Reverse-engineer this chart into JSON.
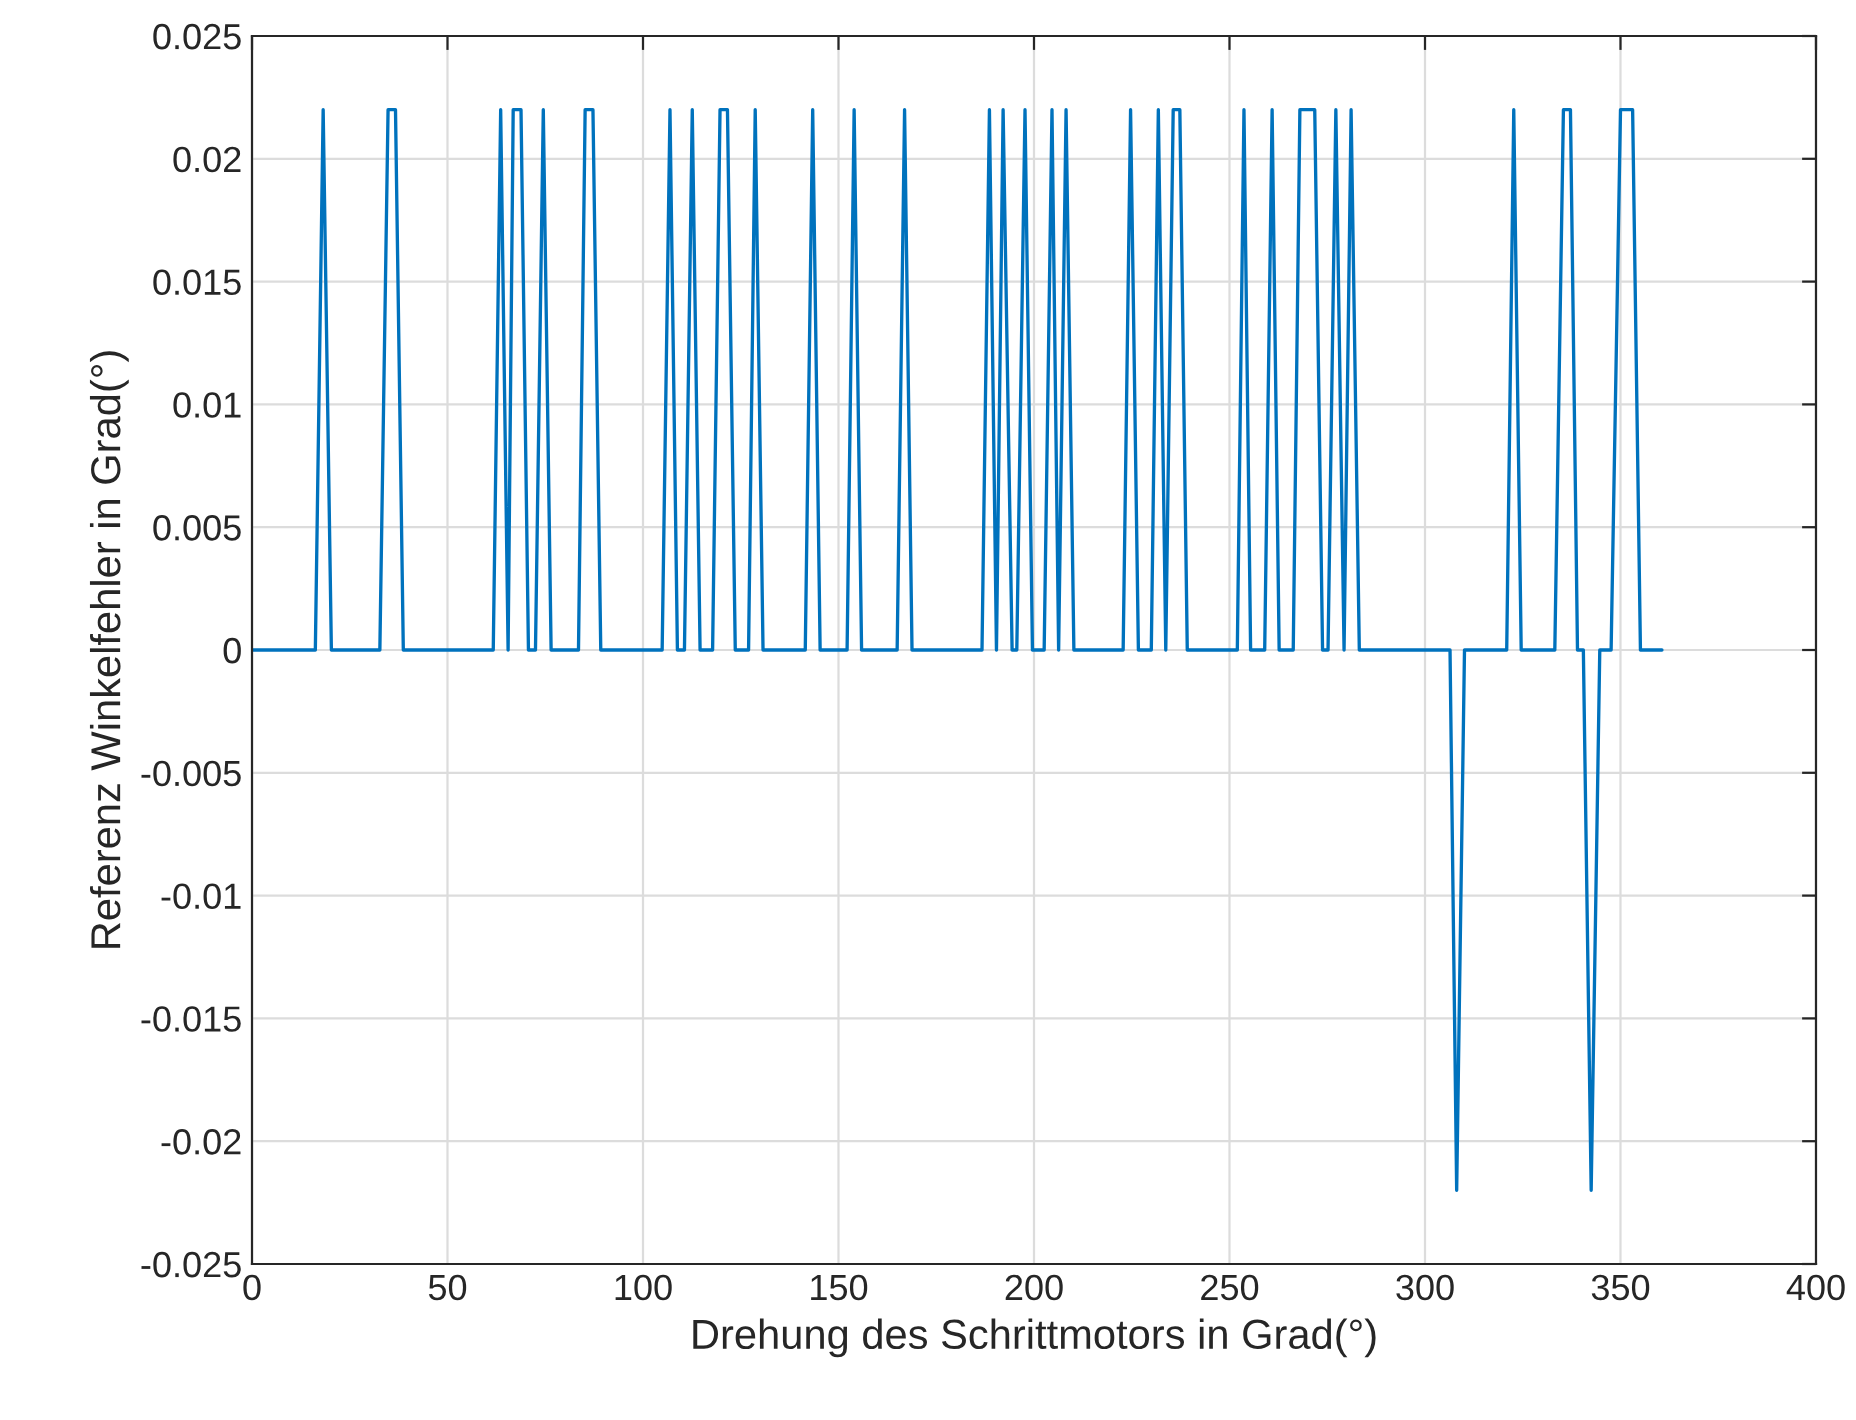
{
  "chart_data": {
    "type": "line",
    "xlabel": "Drehung des Schrittmotors in Grad(°)",
    "ylabel": "Referenz Winkelfehler in Grad(°)",
    "xlim": [
      0,
      400
    ],
    "xticks": [
      0,
      50,
      100,
      150,
      200,
      250,
      300,
      350,
      400
    ],
    "ylim": [
      -0.025,
      0.025
    ],
    "yticks": [
      -0.025,
      -0.02,
      -0.015,
      -0.01,
      -0.005,
      0,
      0.005,
      0.01,
      0.015,
      0.02,
      0.025
    ],
    "grid": true,
    "marker": "none",
    "line_style": "solid",
    "series": [
      {
        "color": "#0072bd",
        "x": [
          0,
          16.2,
          18.2,
          20.3,
          32.7,
          34.8,
          36.7,
          38.7,
          61.7,
          63.6,
          65.5,
          66.8,
          68.8,
          70.7,
          72.5,
          74.5,
          76.5,
          83.5,
          85.2,
          87.2,
          89.2,
          104.9,
          106.9,
          108.8,
          110.6,
          112.6,
          114.6,
          117.8,
          119.7,
          121.6,
          123.6,
          127.0,
          128.7,
          130.7,
          141.5,
          143.4,
          145.3,
          152.2,
          154.0,
          155.9,
          165.0,
          166.9,
          168.8,
          186.7,
          188.6,
          190.4,
          192.1,
          194.4,
          195.6,
          197.7,
          199.6,
          202.6,
          204.6,
          206.3,
          208.2,
          210.2,
          222.8,
          224.7,
          226.7,
          230.0,
          231.8,
          233.7,
          235.6,
          237.3,
          239.2,
          252.0,
          253.7,
          255.4,
          259.0,
          260.9,
          262.7,
          266.3,
          268.0,
          271.8,
          273.8,
          275.2,
          277.2,
          279.3,
          281.1,
          283.2,
          306.4,
          308.1,
          310.1,
          320.9,
          322.7,
          324.6,
          333.2,
          335.4,
          337.2,
          339.0,
          340.5,
          342.5,
          344.7,
          347.6,
          350.0,
          353.1,
          355.1,
          360.6
        ],
        "values": [
          0,
          0,
          0.022,
          0,
          0,
          0.022,
          0.022,
          0,
          0,
          0.022,
          0,
          0.022,
          0.022,
          0,
          0,
          0.022,
          0,
          0,
          0.022,
          0.022,
          0,
          0,
          0.022,
          0,
          0,
          0.022,
          0,
          0,
          0.022,
          0.022,
          0,
          0,
          0.022,
          0,
          0,
          0.022,
          0,
          0,
          0.022,
          0,
          0,
          0.022,
          0,
          0,
          0.022,
          0,
          0.022,
          0,
          0,
          0.022,
          0,
          0,
          0.022,
          0,
          0.022,
          0,
          0,
          0.022,
          0,
          0,
          0.022,
          0,
          0.022,
          0.022,
          0,
          0,
          0.022,
          0,
          0,
          0.022,
          0,
          0,
          0.022,
          0.022,
          0,
          0,
          0.022,
          0,
          0.022,
          0,
          0,
          -0.022,
          0,
          0,
          0.022,
          0,
          0,
          0.022,
          0.022,
          0,
          0,
          -0.022,
          0,
          0,
          0.022,
          0.022,
          0,
          0
        ]
      }
    ]
  }
}
